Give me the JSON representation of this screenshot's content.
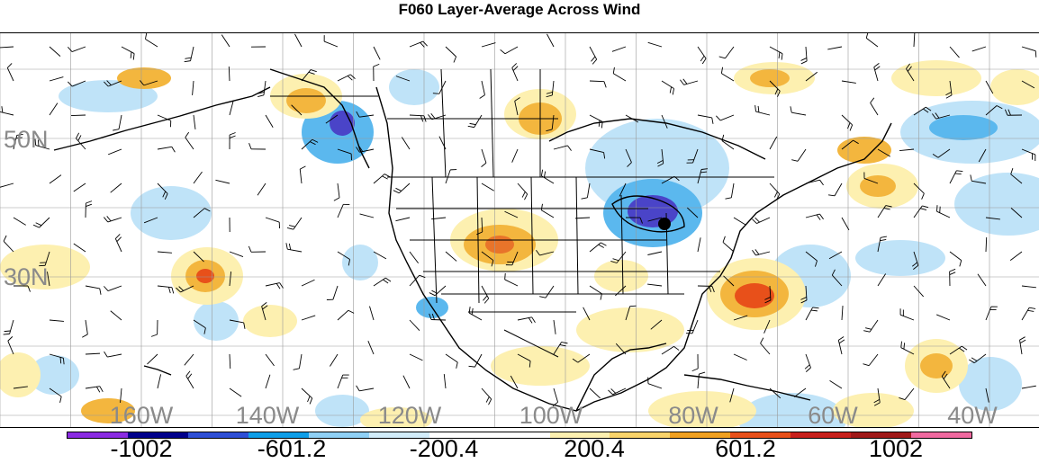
{
  "title": "F060 Layer-Average Across Wind",
  "lon_labels": [
    "160W",
    "140W",
    "120W",
    "100W",
    "80W",
    "60W",
    "40W"
  ],
  "lat_labels": [
    "50N",
    "30N"
  ],
  "colorbar": {
    "colors": [
      "#8a2be2",
      "#00008b",
      "#2e4fd6",
      "#0e9ee8",
      "#8fd0f5",
      "#d2ecf9",
      "#ffffff",
      "#ffffff",
      "#fdf0b0",
      "#f9d36a",
      "#f0a020",
      "#e8501a",
      "#c8201c",
      "#a01818",
      "#f06aa0"
    ],
    "labels": [
      "-1002",
      "-601.2",
      "-200.4",
      "200.4",
      "601.2",
      "1002"
    ]
  },
  "palette": {
    "blue_light": "#bfe3f8",
    "blue_mid": "#5bb8ee",
    "blue_dark": "#2a7ed8",
    "blue_deep": "#4a44c8",
    "yellow_light": "#fdf0b0",
    "orange": "#f3b63e",
    "orange_dark": "#e8742a",
    "red": "#e8501a"
  },
  "marker": {
    "name": "station-marker",
    "color": "#000000"
  }
}
